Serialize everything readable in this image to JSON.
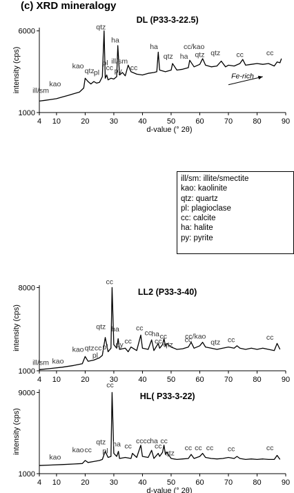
{
  "figure_title": "(c) XRD mineralogy",
  "legend": [
    "ill/sm: illite/smectite",
    "kao: kaolinite",
    "qtz: quartz",
    "pl: plagioclase",
    "cc: calcite",
    "ha: halite",
    "py: pyrite"
  ],
  "chart_data": [
    {
      "type": "line",
      "title": "DL (P33-3-22.5)",
      "xlabel": "d-value (° 2θ)",
      "ylabel": "intensity (cps)",
      "xlim": [
        4,
        90
      ],
      "ylim": [
        1000,
        6200
      ],
      "xticks": [
        4,
        10,
        20,
        30,
        40,
        50,
        60,
        70,
        80,
        90
      ],
      "yticks": [
        1000,
        6000
      ],
      "series": [
        {
          "x": [
            4,
            6,
            8,
            10,
            12,
            14,
            16,
            18,
            19.5,
            20,
            21,
            22,
            23,
            24,
            25,
            26,
            26.6,
            27,
            27.5,
            28,
            29,
            30,
            31,
            31.4,
            32,
            33,
            34,
            35,
            36,
            38,
            40,
            42,
            44,
            45,
            45.5,
            46,
            48,
            50,
            50.5,
            52,
            54,
            56,
            56.5,
            58,
            60,
            61,
            62,
            64,
            66,
            67.5,
            69,
            70,
            72,
            74,
            75,
            76,
            78,
            80,
            82,
            84,
            86,
            87,
            88,
            88.5
          ],
          "y": [
            1700,
            1750,
            1800,
            1850,
            1950,
            2050,
            2150,
            2250,
            2500,
            3100,
            2900,
            2750,
            2900,
            2800,
            2850,
            3200,
            6000,
            3100,
            3300,
            3000,
            3100,
            3050,
            3200,
            5100,
            3300,
            3450,
            3250,
            3900,
            3500,
            3350,
            3300,
            3400,
            3450,
            3500,
            4700,
            3600,
            3500,
            3600,
            4000,
            3600,
            3650,
            3750,
            4200,
            3800,
            3950,
            4300,
            3900,
            3800,
            3850,
            4150,
            3800,
            3900,
            3850,
            4000,
            4250,
            3900,
            3950,
            4000,
            3950,
            4000,
            3850,
            4100,
            4050,
            4300
          ]
        }
      ],
      "peak_labels": [
        {
          "text": "ill/sm",
          "x": 4.5,
          "y": 2200
        },
        {
          "text": "kao",
          "x": 9.5,
          "y": 2600
        },
        {
          "text": "kao",
          "x": 17.5,
          "y": 3700
        },
        {
          "text": "qtz",
          "x": 21.5,
          "y": 3400
        },
        {
          "text": "pl",
          "x": 24,
          "y": 3300
        },
        {
          "text": "qtz",
          "x": 25.5,
          "y": 6100
        },
        {
          "text": "pl",
          "x": 27,
          "y": 3900
        },
        {
          "text": "cc",
          "x": 28.5,
          "y": 3600
        },
        {
          "text": "ha",
          "x": 30.5,
          "y": 5300
        },
        {
          "text": "ill/sm",
          "x": 32,
          "y": 4000
        },
        {
          "text": "py",
          "x": 31.5,
          "y": 3400
        },
        {
          "text": "cc",
          "x": 37,
          "y": 3600
        },
        {
          "text": "ha",
          "x": 44,
          "y": 4900
        },
        {
          "text": "qtz",
          "x": 49,
          "y": 4300
        },
        {
          "text": "ha",
          "x": 54.5,
          "y": 4300
        },
        {
          "text": "cc/kao",
          "x": 58,
          "y": 4900
        },
        {
          "text": "qtz",
          "x": 60,
          "y": 4400
        },
        {
          "text": "qtz",
          "x": 65.5,
          "y": 4500
        },
        {
          "text": "cc",
          "x": 74,
          "y": 4400
        },
        {
          "text": "cc",
          "x": 84.5,
          "y": 4500
        }
      ],
      "annotations": [
        {
          "text": "Fe-rich",
          "x": 71,
          "y": 3100,
          "arrow_from": [
            70,
            2700
          ],
          "arrow_to": [
            82,
            3200
          ]
        }
      ]
    },
    {
      "type": "line",
      "title": "LL2 (P33-3-40)",
      "xlabel": "",
      "ylabel": "intensity (cps)",
      "xlim": [
        4,
        90
      ],
      "ylim": [
        1000,
        8200
      ],
      "xticks": [
        4,
        10,
        20,
        30,
        40,
        50,
        60,
        70,
        80,
        90
      ],
      "yticks": [
        1000,
        8000
      ],
      "series": [
        {
          "x": [
            4,
            8,
            12,
            16,
            19,
            20,
            21,
            23,
            25,
            26,
            27,
            28,
            29,
            29.4,
            30,
            31,
            31.5,
            32,
            34,
            35,
            36,
            38,
            39.4,
            40,
            42,
            43.2,
            44,
            45.5,
            46,
            47,
            47.5,
            48,
            48.5,
            50,
            52,
            54,
            56,
            57,
            58,
            60,
            61,
            62,
            64,
            66,
            68,
            70,
            72,
            73,
            74,
            76,
            78,
            80,
            82,
            84,
            86,
            87,
            88
          ],
          "y": [
            1100,
            1200,
            1300,
            1450,
            1600,
            2200,
            1800,
            1900,
            2100,
            2300,
            3800,
            2600,
            2900,
            8000,
            3200,
            2900,
            3700,
            2800,
            2900,
            2600,
            3000,
            2700,
            4000,
            2900,
            2800,
            3600,
            2700,
            3300,
            2900,
            3200,
            3700,
            3100,
            3300,
            3000,
            2800,
            2850,
            3000,
            3400,
            2900,
            3100,
            3400,
            3000,
            2900,
            2800,
            2900,
            3000,
            2900,
            3100,
            2900,
            2800,
            2900,
            2800,
            2900,
            2800,
            2700,
            3300,
            2800
          ]
        }
      ],
      "peak_labels": [
        {
          "text": "ill/sm",
          "x": 4.5,
          "y": 1500
        },
        {
          "text": "kao",
          "x": 10.5,
          "y": 1600
        },
        {
          "text": "kao",
          "x": 17.5,
          "y": 2600
        },
        {
          "text": "qtz",
          "x": 21.5,
          "y": 2700
        },
        {
          "text": "pl",
          "x": 23.5,
          "y": 2100
        },
        {
          "text": "cc",
          "x": 24.5,
          "y": 2700
        },
        {
          "text": "qtz",
          "x": 25.5,
          "y": 4500
        },
        {
          "text": "pl",
          "x": 27,
          "y": 2800
        },
        {
          "text": "cc",
          "x": 28.5,
          "y": 8300
        },
        {
          "text": "ha",
          "x": 30.5,
          "y": 4300
        },
        {
          "text": "py",
          "x": 32,
          "y": 3000
        },
        {
          "text": "cc",
          "x": 35,
          "y": 3300
        },
        {
          "text": "cc",
          "x": 39,
          "y": 4400
        },
        {
          "text": "cc",
          "x": 42,
          "y": 4000
        },
        {
          "text": "ha",
          "x": 44.5,
          "y": 3900
        },
        {
          "text": "cc",
          "x": 47.3,
          "y": 3700
        },
        {
          "text": "cc",
          "x": 45.5,
          "y": 3300
        },
        {
          "text": "qtz",
          "x": 49,
          "y": 3000
        },
        {
          "text": "cc",
          "x": 56,
          "y": 3400
        },
        {
          "text": "cc/kao",
          "x": 58.5,
          "y": 3700
        },
        {
          "text": "qtz",
          "x": 65.5,
          "y": 3200
        },
        {
          "text": "cc",
          "x": 71,
          "y": 3400
        },
        {
          "text": "cc",
          "x": 84.5,
          "y": 3600
        }
      ]
    },
    {
      "type": "line",
      "title": "HL( P33-3-22)",
      "xlabel": "d-value (° 2θ)",
      "ylabel": "intensity (cps)",
      "xlim": [
        4,
        90
      ],
      "ylim": [
        1000,
        9300
      ],
      "xticks": [
        4,
        10,
        20,
        30,
        40,
        50,
        60,
        70,
        80,
        90
      ],
      "yticks": [
        1000,
        9000
      ],
      "series": [
        {
          "x": [
            4,
            8,
            12,
            16,
            19,
            20,
            21,
            23,
            25,
            26,
            27,
            28,
            29,
            29.4,
            30,
            31,
            31.6,
            32,
            34,
            36,
            36.5,
            38,
            39.4,
            40,
            42,
            43.2,
            44,
            45.5,
            46,
            47,
            47.5,
            48,
            48.5,
            50,
            52,
            54,
            56,
            57,
            58,
            60,
            61,
            62,
            64,
            66,
            68,
            70,
            72,
            73,
            74,
            76,
            78,
            80,
            82,
            84,
            86,
            87,
            88
          ],
          "y": [
            1800,
            1850,
            1900,
            1950,
            2000,
            2300,
            2100,
            2200,
            2300,
            2400,
            3200,
            2600,
            2700,
            9000,
            3000,
            2700,
            3200,
            2500,
            2600,
            2500,
            3000,
            2600,
            3800,
            2700,
            2600,
            3300,
            2500,
            3000,
            2700,
            3100,
            3800,
            2900,
            3100,
            2500,
            2400,
            2450,
            2500,
            2900,
            2500,
            2700,
            3000,
            2600,
            2500,
            2450,
            2500,
            2600,
            2500,
            2700,
            2500,
            2400,
            2450,
            2400,
            2450,
            2400,
            2400,
            2800,
            2400
          ]
        }
      ],
      "peak_labels": [
        {
          "text": "kao",
          "x": 9.5,
          "y": 2400
        },
        {
          "text": "kao",
          "x": 17.5,
          "y": 3100
        },
        {
          "text": "cc",
          "x": 21,
          "y": 3100
        },
        {
          "text": "qtz",
          "x": 25.5,
          "y": 3900
        },
        {
          "text": "pl",
          "x": 27,
          "y": 3000
        },
        {
          "text": "cc",
          "x": 28.7,
          "y": 9500
        },
        {
          "text": "ha",
          "x": 31,
          "y": 3700
        },
        {
          "text": "cc",
          "x": 35,
          "y": 3500
        },
        {
          "text": "cc",
          "x": 39,
          "y": 4000
        },
        {
          "text": "cc",
          "x": 41.5,
          "y": 4000
        },
        {
          "text": "ha",
          "x": 44,
          "y": 4000
        },
        {
          "text": "cc",
          "x": 47.5,
          "y": 4000
        },
        {
          "text": "cc",
          "x": 45.5,
          "y": 3500
        },
        {
          "text": "qtz",
          "x": 49.5,
          "y": 2800
        },
        {
          "text": "cc",
          "x": 56,
          "y": 3300
        },
        {
          "text": "cc",
          "x": 59.5,
          "y": 3300
        },
        {
          "text": "cc",
          "x": 63.5,
          "y": 3300
        },
        {
          "text": "cc",
          "x": 71,
          "y": 3200
        },
        {
          "text": "cc",
          "x": 84.5,
          "y": 3300
        }
      ]
    }
  ]
}
